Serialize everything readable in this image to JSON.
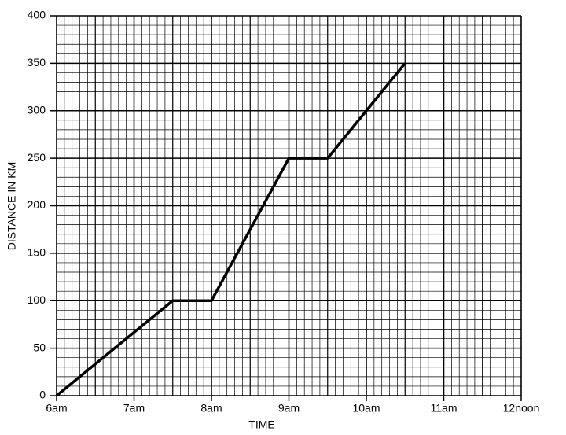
{
  "chart_data": {
    "type": "line",
    "x_label": "TIME",
    "y_label": "DISTANCE IN KM",
    "x": [
      6,
      7.5,
      8,
      9,
      9.5,
      10.5
    ],
    "values": [
      0,
      100,
      100,
      250,
      250,
      350
    ],
    "color": "#000000",
    "xlim": [
      6,
      12
    ],
    "xticks": [
      {
        "value": 6,
        "label": "6am"
      },
      {
        "value": 7,
        "label": "7am"
      },
      {
        "value": 8,
        "label": "8am"
      },
      {
        "value": 9,
        "label": "9am"
      },
      {
        "value": 10,
        "label": "10am"
      },
      {
        "value": 11,
        "label": "11am"
      },
      {
        "value": 12,
        "label": "12noon"
      }
    ],
    "ylim": [
      0,
      400
    ],
    "yticks": [
      0,
      50,
      100,
      150,
      200,
      250,
      300,
      350,
      400
    ],
    "grid": true,
    "minor_grid": true
  }
}
